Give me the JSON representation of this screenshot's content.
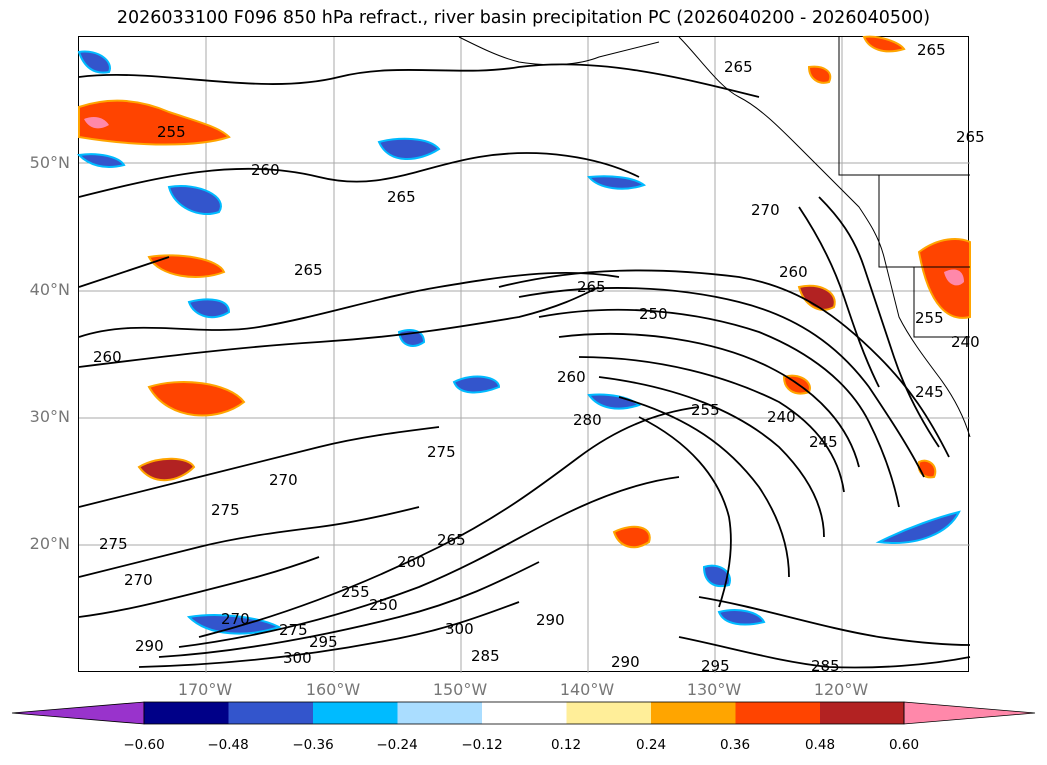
{
  "title": "2026033100 F096 850 hPa refract., river basin precipitation PC (2026040200 - 2026040500)",
  "lat_labels": [
    "50°N",
    "40°N",
    "30°N",
    "20°N"
  ],
  "lon_labels": [
    "170°W",
    "160°W",
    "150°W",
    "140°W",
    "130°W",
    "120°W"
  ],
  "contour_labels": [
    "255",
    "260",
    "265",
    "265",
    "265",
    "270",
    "265",
    "250",
    "260",
    "280",
    "255",
    "240",
    "245",
    "275",
    "270",
    "275",
    "275",
    "270",
    "260",
    "265",
    "255",
    "250",
    "260",
    "270",
    "275",
    "295",
    "290",
    "300",
    "300",
    "285",
    "290",
    "290",
    "295",
    "285",
    "260",
    "255",
    "240",
    "265",
    "265",
    "245"
  ],
  "colorbar": {
    "ticks": [
      "−0.60",
      "−0.48",
      "−0.36",
      "−0.24",
      "−0.12",
      "0.12",
      "0.24",
      "0.36",
      "0.48",
      "0.60"
    ],
    "colors": [
      "#9933cc",
      "#000088",
      "#3355cc",
      "#00bbff",
      "#aaddff",
      "#ffffff",
      "#ffee99",
      "#ffa500",
      "#ff4400",
      "#b22222",
      "#ff88aa"
    ]
  }
}
